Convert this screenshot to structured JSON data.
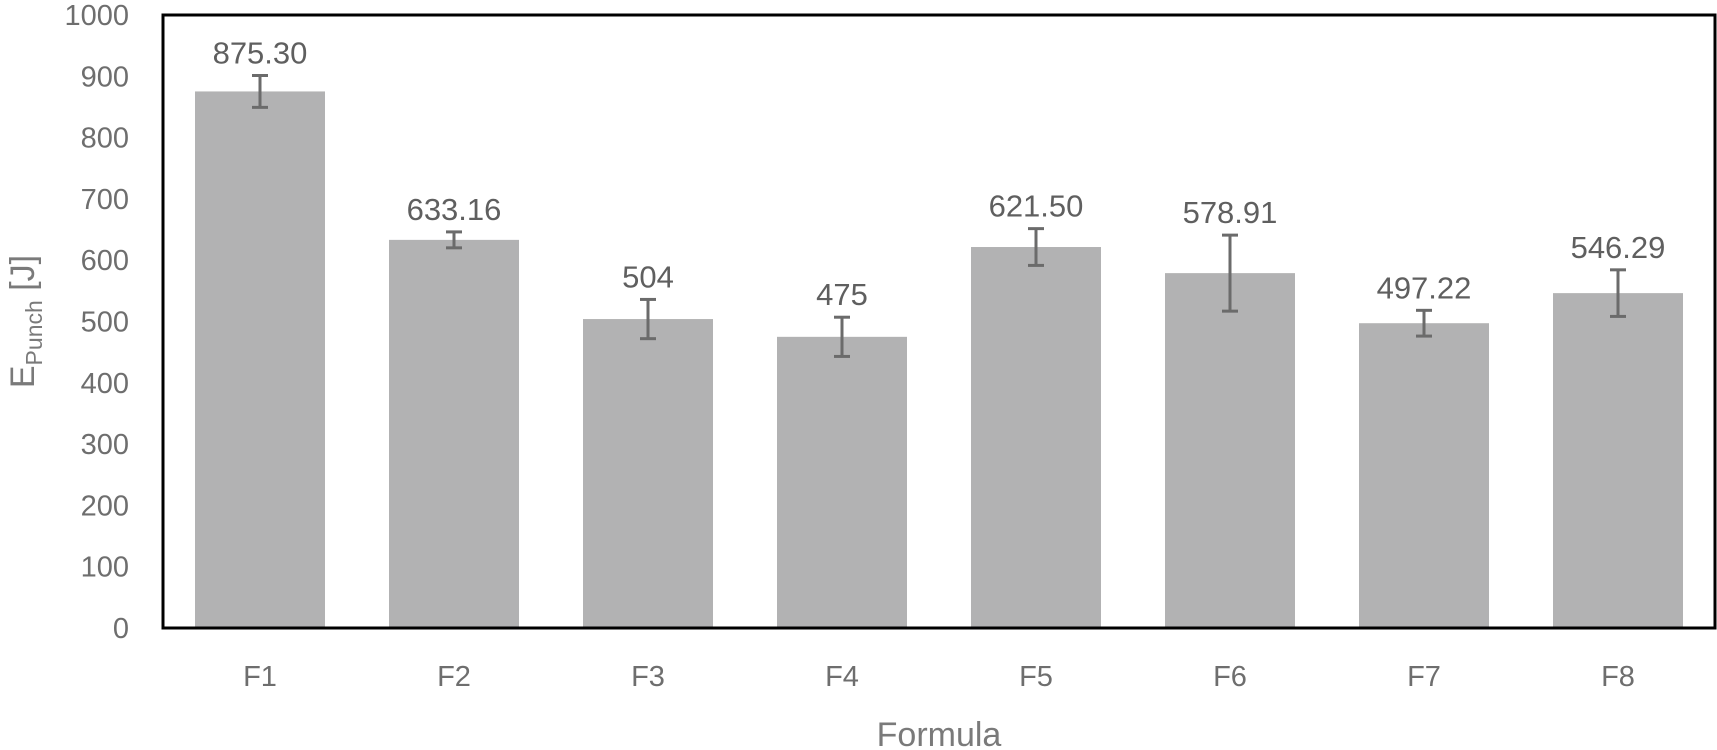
{
  "chart_data": {
    "type": "bar",
    "title": "",
    "xlabel": "Formula",
    "ylabel": {
      "main": "E",
      "sub": "Punch",
      "unit": " [J]"
    },
    "categories": [
      "F1",
      "F2",
      "F3",
      "F4",
      "F5",
      "F6",
      "F7",
      "F8"
    ],
    "values": [
      875.3,
      633.16,
      504,
      475,
      621.5,
      578.91,
      497.22,
      546.29
    ],
    "data_labels": [
      "875.30",
      "633.16",
      "504",
      "475",
      "621.50",
      "578.91",
      "497.22",
      "546.29"
    ],
    "error_bars": [
      26,
      13,
      32,
      32,
      30,
      62,
      21,
      38
    ],
    "ylim": [
      0,
      1000
    ],
    "yticks": [
      0,
      100,
      200,
      300,
      400,
      500,
      600,
      700,
      800,
      900,
      1000
    ],
    "grid": false,
    "legend": "none",
    "colors": {
      "bar": "#b2b2b3",
      "error_bar": "#6b6b6b",
      "frame": "#000000"
    }
  }
}
